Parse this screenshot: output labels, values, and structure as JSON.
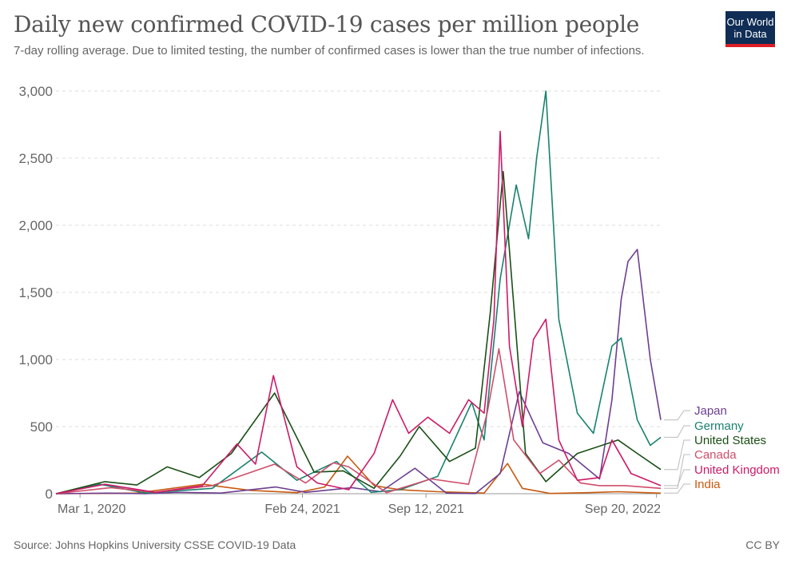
{
  "header": {
    "title": "Daily new confirmed COVID-19 cases per million people",
    "subtitle": "7-day rolling average. Due to limited testing, the number of confirmed cases is lower than the true number of infections.",
    "logo_line1": "Our World",
    "logo_line2": "in Data"
  },
  "footer": {
    "source": "Source: Johns Hopkins University CSSE COVID-19 Data",
    "license": "CC BY"
  },
  "chart_data": {
    "type": "line",
    "title": "Daily new confirmed COVID-19 cases per million people",
    "subtitle": "7-day rolling average. Due to limited testing, the number of confirmed cases is lower than the true number of infections.",
    "xlabel": "",
    "ylabel": "",
    "x_range": [
      "2020-01-22",
      "2022-09-27"
    ],
    "ylim": [
      0,
      3000
    ],
    "y_ticks": [
      0,
      500,
      1000,
      1500,
      2000,
      2500,
      3000
    ],
    "y_tick_labels": [
      "0",
      "500",
      "1,000",
      "1,500",
      "2,000",
      "2,500",
      "3,000"
    ],
    "x_ticks": [
      "2020-03-01",
      "2021-02-24",
      "2021-09-12",
      "2022-09-20"
    ],
    "x_tick_labels": [
      "Mar 1, 2020",
      "Feb 24, 2021",
      "Sep 12, 2021",
      "Sep 20, 2022"
    ],
    "grid": "horizontal dashed",
    "legend": "right, labels at line ends",
    "series": [
      {
        "name": "India",
        "color": "#c85a0f",
        "x": [
          "2020-01-22",
          "2020-06-01",
          "2020-09-16",
          "2020-12-01",
          "2021-02-15",
          "2021-04-01",
          "2021-05-08",
          "2021-06-20",
          "2021-08-01",
          "2021-10-01",
          "2021-12-15",
          "2022-01-22",
          "2022-02-15",
          "2022-04-01",
          "2022-06-01",
          "2022-07-20",
          "2022-09-27"
        ],
        "y": [
          0,
          5,
          70,
          25,
          8,
          50,
          280,
          60,
          30,
          15,
          5,
          225,
          40,
          2,
          8,
          15,
          4
        ]
      },
      {
        "name": "Japan",
        "color": "#6d3e91",
        "x": [
          "2020-01-22",
          "2020-04-15",
          "2020-06-15",
          "2020-08-05",
          "2020-10-15",
          "2021-01-12",
          "2021-03-01",
          "2021-05-15",
          "2021-07-01",
          "2021-08-25",
          "2021-10-15",
          "2021-12-01",
          "2022-01-10",
          "2022-02-10",
          "2022-03-20",
          "2022-05-01",
          "2022-06-20",
          "2022-07-10",
          "2022-07-25",
          "2022-08-05",
          "2022-08-20",
          "2022-09-10",
          "2022-09-27"
        ],
        "y": [
          0,
          4,
          0,
          10,
          5,
          50,
          10,
          45,
          15,
          190,
          5,
          1,
          150,
          760,
          380,
          300,
          110,
          700,
          1450,
          1730,
          1820,
          1000,
          550
        ]
      },
      {
        "name": "Germany",
        "color": "#18826e",
        "x": [
          "2020-01-22",
          "2020-04-02",
          "2020-06-15",
          "2020-10-01",
          "2020-12-20",
          "2021-02-15",
          "2021-04-20",
          "2021-06-15",
          "2021-08-01",
          "2021-10-01",
          "2021-11-25",
          "2021-12-15",
          "2022-01-10",
          "2022-02-05",
          "2022-02-25",
          "2022-03-10",
          "2022-03-25",
          "2022-04-15",
          "2022-05-15",
          "2022-06-10",
          "2022-07-10",
          "2022-07-25",
          "2022-08-20",
          "2022-09-10",
          "2022-09-27"
        ],
        "y": [
          0,
          70,
          5,
          40,
          310,
          100,
          240,
          10,
          30,
          130,
          680,
          400,
          1600,
          2300,
          1900,
          2500,
          3000,
          1300,
          600,
          450,
          1100,
          1160,
          550,
          360,
          420
        ]
      },
      {
        "name": "United States",
        "color": "#1a4f16",
        "x": [
          "2020-01-22",
          "2020-04-10",
          "2020-06-01",
          "2020-07-20",
          "2020-09-10",
          "2020-11-01",
          "2021-01-10",
          "2021-03-15",
          "2021-05-01",
          "2021-06-20",
          "2021-08-01",
          "2021-09-01",
          "2021-10-20",
          "2021-12-01",
          "2021-12-25",
          "2022-01-15",
          "2022-02-20",
          "2022-03-25",
          "2022-05-15",
          "2022-07-20",
          "2022-08-20",
          "2022-09-27"
        ],
        "y": [
          0,
          90,
          65,
          200,
          120,
          300,
          750,
          160,
          170,
          40,
          280,
          500,
          240,
          340,
          1350,
          2400,
          300,
          90,
          300,
          400,
          300,
          180
        ]
      },
      {
        "name": "Canada",
        "color": "#cf4e6b",
        "x": [
          "2020-01-22",
          "2020-04-20",
          "2020-07-01",
          "2020-10-01",
          "2021-01-10",
          "2021-03-01",
          "2021-04-15",
          "2021-05-10",
          "2021-07-10",
          "2021-09-20",
          "2021-11-20",
          "2021-12-20",
          "2022-01-08",
          "2022-02-01",
          "2022-03-15",
          "2022-04-15",
          "2022-05-20",
          "2022-06-20",
          "2022-08-01",
          "2022-09-27"
        ],
        "y": [
          0,
          45,
          10,
          60,
          220,
          80,
          230,
          200,
          8,
          110,
          70,
          600,
          1080,
          400,
          150,
          250,
          80,
          60,
          60,
          40
        ]
      },
      {
        "name": "United Kingdom",
        "color": "#cc1a68",
        "x": [
          "2020-01-22",
          "2020-04-10",
          "2020-07-01",
          "2020-09-15",
          "2020-11-10",
          "2020-12-10",
          "2021-01-08",
          "2021-02-15",
          "2021-03-20",
          "2021-05-10",
          "2021-06-20",
          "2021-07-20",
          "2021-08-15",
          "2021-09-15",
          "2021-10-20",
          "2021-11-20",
          "2021-12-15",
          "2021-12-31",
          "2022-01-10",
          "2022-01-25",
          "2022-02-15",
          "2022-03-05",
          "2022-03-25",
          "2022-04-15",
          "2022-05-15",
          "2022-06-20",
          "2022-07-10",
          "2022-08-10",
          "2022-09-27"
        ],
        "y": [
          0,
          70,
          10,
          60,
          370,
          220,
          880,
          200,
          80,
          30,
          300,
          700,
          450,
          570,
          450,
          700,
          600,
          1300,
          2700,
          1100,
          500,
          1150,
          1300,
          400,
          100,
          120,
          400,
          150,
          60
        ]
      }
    ]
  }
}
